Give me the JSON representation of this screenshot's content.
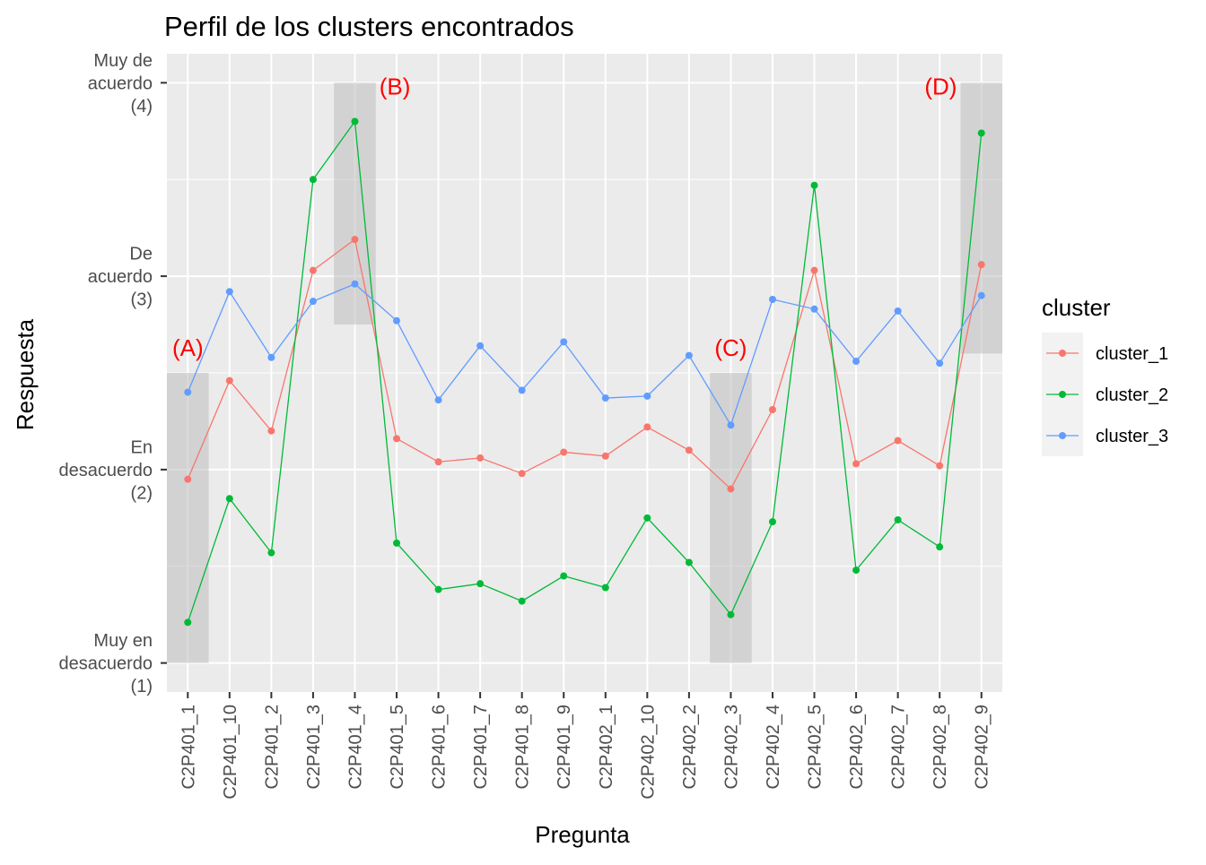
{
  "chart_data": {
    "type": "line",
    "title": "Perfil de los clusters encontrados",
    "xlabel": "Pregunta",
    "ylabel": "Respuesta",
    "categories": [
      "C2P401_1",
      "C2P401_10",
      "C2P401_2",
      "C2P401_3",
      "C2P401_4",
      "C2P401_5",
      "C2P401_6",
      "C2P401_7",
      "C2P401_8",
      "C2P401_9",
      "C2P402_1",
      "C2P402_10",
      "C2P402_2",
      "C2P402_3",
      "C2P402_4",
      "C2P402_5",
      "C2P402_6",
      "C2P402_7",
      "C2P402_8",
      "C2P402_9"
    ],
    "ylim": [
      0.85,
      4.15
    ],
    "y_ticks": [
      {
        "value": 1,
        "lines": [
          "Muy en",
          "desacuerdo",
          "(1)"
        ]
      },
      {
        "value": 2,
        "lines": [
          "En",
          "desacuerdo",
          "(2)"
        ]
      },
      {
        "value": 3,
        "lines": [
          "De",
          "acuerdo",
          "(3)"
        ]
      },
      {
        "value": 4,
        "lines": [
          "Muy de",
          "acuerdo",
          "(4)"
        ]
      }
    ],
    "legend_title": "cluster",
    "legend_position": "right",
    "series": [
      {
        "name": "cluster_1",
        "color": "#F8766D",
        "values": [
          1.95,
          2.46,
          2.2,
          3.03,
          3.19,
          2.16,
          2.04,
          2.06,
          1.98,
          2.09,
          2.07,
          2.22,
          2.1,
          1.9,
          2.31,
          3.03,
          2.03,
          2.15,
          2.02,
          3.06
        ]
      },
      {
        "name": "cluster_2",
        "color": "#00BA38",
        "values": [
          1.21,
          1.85,
          1.57,
          3.5,
          3.8,
          1.62,
          1.38,
          1.41,
          1.32,
          1.45,
          1.39,
          1.75,
          1.52,
          1.25,
          1.73,
          3.47,
          1.48,
          1.74,
          1.6,
          3.74
        ]
      },
      {
        "name": "cluster_3",
        "color": "#619CFF",
        "values": [
          2.4,
          2.92,
          2.58,
          2.87,
          2.96,
          2.77,
          2.36,
          2.64,
          2.41,
          2.66,
          2.37,
          2.38,
          2.59,
          2.23,
          2.88,
          2.83,
          2.56,
          2.82,
          2.55,
          2.9
        ]
      }
    ],
    "highlights": [
      {
        "label": "(A)",
        "category": "C2P401_1",
        "ymin": 1.0,
        "ymax": 2.5,
        "label_y": 2.63,
        "label_side": "above"
      },
      {
        "label": "(B)",
        "category": "C2P401_4",
        "ymin": 2.75,
        "ymax": 4.0,
        "label_y": 3.98,
        "label_side": "right"
      },
      {
        "label": "(C)",
        "category": "C2P402_3",
        "ymin": 1.0,
        "ymax": 2.5,
        "label_y": 2.63,
        "label_side": "above"
      },
      {
        "label": "(D)",
        "category": "C2P402_9",
        "ymin": 2.6,
        "ymax": 4.0,
        "label_y": 3.98,
        "label_side": "left"
      }
    ],
    "grid": true,
    "background": "#EBEBEB",
    "highlight_color": "#BEBEBE",
    "annotation_color": "#FF0000"
  }
}
